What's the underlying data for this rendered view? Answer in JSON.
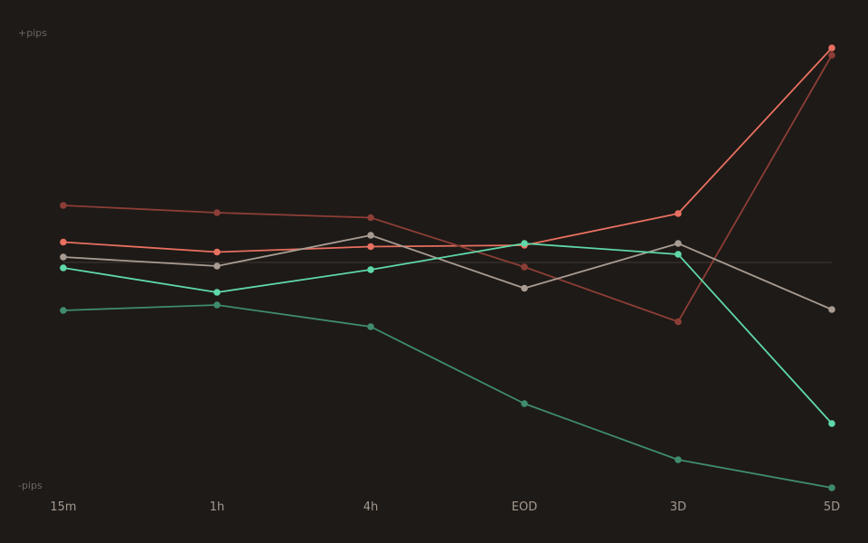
{
  "chart_data": {
    "type": "line",
    "categories": [
      "15m",
      "1h",
      "4h",
      "EOD",
      "3D",
      "5D"
    ],
    "y_top_label": "+pips",
    "y_bottom_label": "-pips",
    "ylim": [
      -100,
      100
    ],
    "baseline": 0,
    "grid": false,
    "legend": "none",
    "series": [
      {
        "color": "#e87060",
        "values": [
          9,
          4.6,
          7,
          7.6,
          21.6,
          94.8
        ]
      },
      {
        "color": "#8c3e36",
        "values": [
          25.2,
          22,
          19.8,
          -2,
          -26.2,
          91.6
        ]
      },
      {
        "color": "#a89c92",
        "values": [
          2.4,
          -1.6,
          12,
          -11.4,
          8.4,
          -20.8
        ]
      },
      {
        "color": "#5fd8a8",
        "values": [
          -2.4,
          -13.2,
          -3.2,
          8.4,
          3.6,
          -71.2
        ]
      },
      {
        "color": "#3f8c6c",
        "values": [
          -21.2,
          -18.8,
          -28.4,
          -62.4,
          -87.2,
          -99.6
        ]
      }
    ]
  }
}
